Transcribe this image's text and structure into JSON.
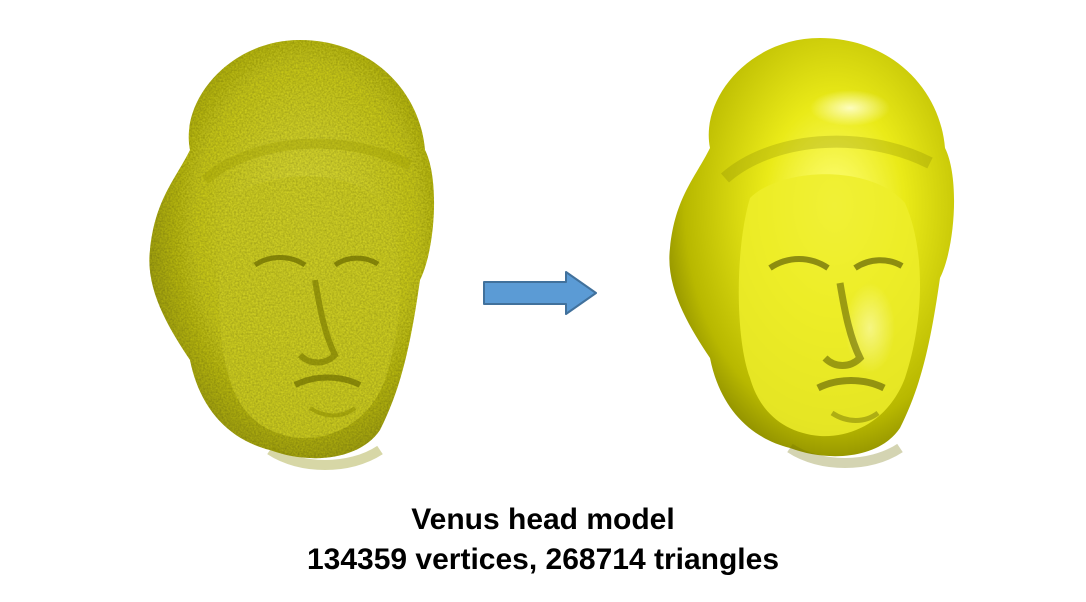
{
  "figure": {
    "left_model": {
      "name": "Venus head model (noisy)",
      "icon": "venus-head-noisy-render",
      "color": "#d6d61a",
      "shadow_color": "#8c8c00"
    },
    "right_model": {
      "name": "Venus head model (smoothed)",
      "icon": "venus-head-smooth-render",
      "color": "#e6e60a",
      "shadow_color": "#6f6f00"
    },
    "arrow": {
      "icon": "right-arrow-icon",
      "fill": "#5b9bd5",
      "stroke": "#41719c"
    }
  },
  "caption": {
    "title": "Venus head model",
    "stats": "134359 vertices, 268714 triangles"
  }
}
